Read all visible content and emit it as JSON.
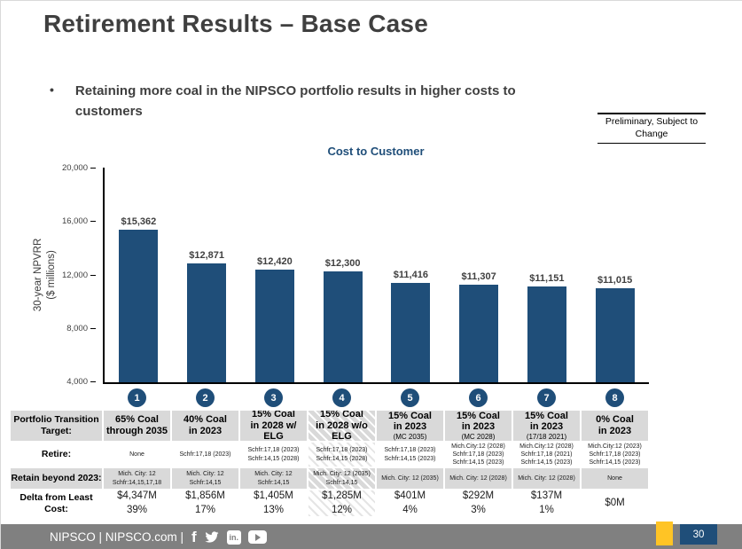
{
  "slide": {
    "title": "Retirement Results – Base Case",
    "bullet_glyph": "•",
    "bullet_lines": [
      "Retaining more coal in the NIPSCO portfolio results in higher costs to",
      "customers"
    ],
    "preliminary_lines": [
      "Preliminary, Subject to",
      "Change"
    ],
    "page_number": "30"
  },
  "chart_data": {
    "type": "bar",
    "title": "Cost to Customer",
    "ylabel_lines": [
      "30-year NPVRR",
      "($ millions)"
    ],
    "ylim": [
      4000,
      20000
    ],
    "ytick_labels": [
      "20,000",
      "16,000",
      "12,000",
      "8,000",
      "4,000"
    ],
    "categories": [
      "1",
      "2",
      "3",
      "4",
      "5",
      "6",
      "7",
      "8"
    ],
    "values": [
      15362,
      12871,
      12420,
      12300,
      11416,
      11307,
      11151,
      11015
    ],
    "value_labels": [
      "$15,362",
      "$12,871",
      "$12,420",
      "$12,300",
      "$11,416",
      "$11,307",
      "$11,151",
      "$11,015"
    ],
    "bar_color": "#1F4E79",
    "grid": "off",
    "legend": "none"
  },
  "table": {
    "row_headers": [
      "Portfolio Transition Target:",
      "Retire:",
      "Retain beyond 2023:",
      "Delta from Least Cost:"
    ],
    "target": [
      [
        "65% Coal",
        "through 2035"
      ],
      [
        "40% Coal",
        "in 2023"
      ],
      [
        "15% Coal",
        "in 2028 w/ ELG"
      ],
      [
        "15% Coal",
        "in 2028 w/o",
        "ELG"
      ],
      [
        "15% Coal",
        "in 2023"
      ],
      [
        "15% Coal",
        "in 2023"
      ],
      [
        "15% Coal",
        "in 2023"
      ],
      [
        "0% Coal",
        "in 2023"
      ]
    ],
    "target_sub": [
      "",
      "",
      "",
      "",
      "(MC 2035)",
      "(MC 2028)",
      "(17/18 2021)",
      ""
    ],
    "retire": [
      [
        "None"
      ],
      [
        "Schfr:17,18 (2023)"
      ],
      [
        "Schfr:17,18 (2023)",
        "Schfr:14,15 (2028)"
      ],
      [
        "Schfr:17,18 (2023)",
        "Schfr:14,15 (2028)"
      ],
      [
        "Schfr:17,18 (2023)",
        "Schfr:14,15 (2023)"
      ],
      [
        "Mich.City:12 (2028)",
        "Schfr:17,18 (2023)",
        "Schfr:14,15 (2023)"
      ],
      [
        "Mich.City:12 (2028)",
        "Schfr:17,18 (2021)",
        "Schfr:14,15 (2023)"
      ],
      [
        "Mich.City:12 (2023)",
        "Schfr:17,18 (2023)",
        "Schfr:14,15 (2023)"
      ]
    ],
    "retain": [
      [
        "Mich. City: 12",
        "Schfr:14,15,17,18"
      ],
      [
        "Mich. City: 12",
        "Schfr:14,15"
      ],
      [
        "Mich. City: 12",
        "Schfr:14,15"
      ],
      [
        "Mich. City: 12 (2035)",
        "Schfr:14,15"
      ],
      [
        "Mich. City: 12 (2035)"
      ],
      [
        "Mich. City: 12 (2028)"
      ],
      [
        "Mich. City: 12 (2028)"
      ],
      [
        "None"
      ]
    ],
    "delta_amount": [
      "$4,347M",
      "$1,856M",
      "$1,405M",
      "$1,285M",
      "$401M",
      "$292M",
      "$137M",
      "$0M"
    ],
    "delta_pct": [
      "39%",
      "17%",
      "13%",
      "12%",
      "4%",
      "3%",
      "1%",
      ""
    ]
  },
  "footer": {
    "brand": "NIPSCO | NIPSCO.com |",
    "linkedin_glyph": "in.",
    "facebook_glyph": "f"
  },
  "colors": {
    "navy": "#1F4E79",
    "heading_gray": "#3F3F3F",
    "table_gray": "#D9D9D9",
    "footer_gray": "#808080",
    "accent_yellow": "#FFC425"
  }
}
